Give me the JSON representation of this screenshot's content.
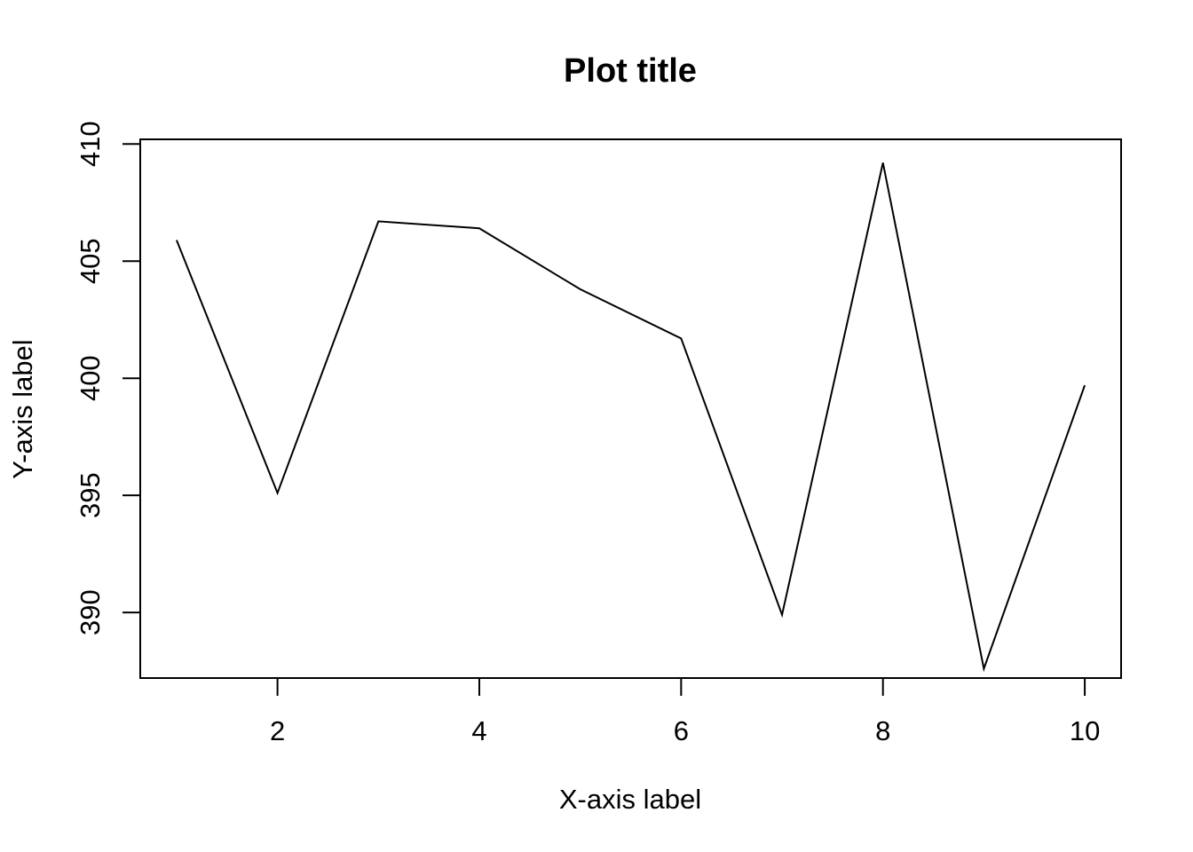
{
  "chart_data": {
    "type": "line",
    "title": "Plot title",
    "xlabel": "X-axis label",
    "ylabel": "Y-axis label",
    "x": [
      1,
      2,
      3,
      4,
      5,
      6,
      7,
      8,
      9,
      10
    ],
    "series": [
      {
        "values": [
          405.9,
          395.1,
          406.7,
          406.4,
          403.8,
          401.7,
          389.9,
          409.2,
          387.6,
          399.7
        ],
        "color": "#000000"
      }
    ],
    "xlim": [
      0.64,
      10.36
    ],
    "ylim": [
      387.2,
      410.2
    ],
    "xticks": [
      2,
      4,
      6,
      8,
      10
    ],
    "yticks": [
      390,
      395,
      400,
      405,
      410
    ],
    "grid": false,
    "legend": "none"
  }
}
